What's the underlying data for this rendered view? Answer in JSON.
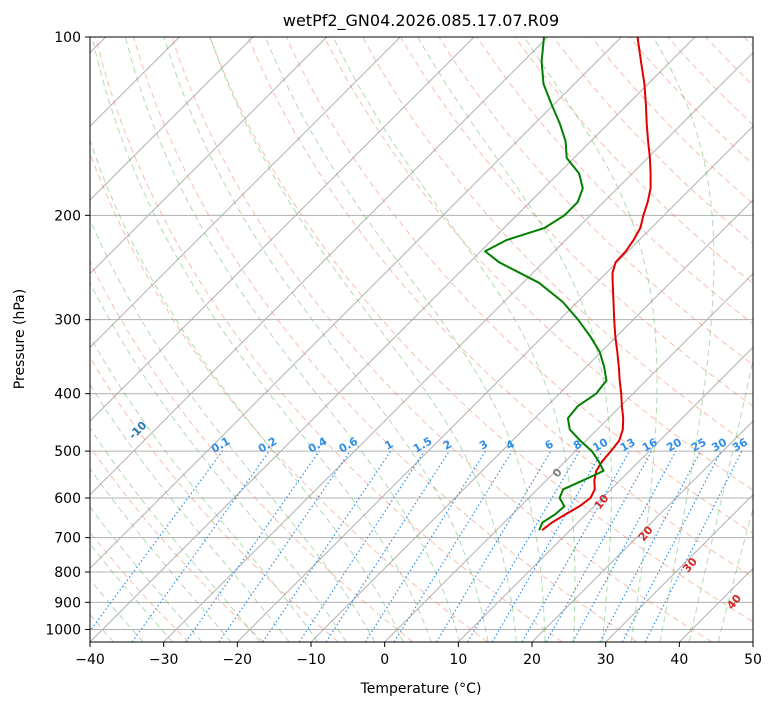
{
  "chart_data": {
    "type": "line",
    "title": "wetPf2_GN04.2026.085.17.07.R09",
    "xlabel": "Temperature (°C)",
    "ylabel": "Pressure (hPa)",
    "xlim": [
      -40,
      50
    ],
    "ylim": [
      1050,
      100
    ],
    "x_ticks": [
      -40,
      -30,
      -20,
      -10,
      0,
      10,
      20,
      30,
      40,
      50
    ],
    "y_ticks": [
      100,
      200,
      300,
      400,
      500,
      600,
      700,
      800,
      900,
      1000
    ],
    "series": [
      {
        "name": "temperature",
        "color": "#e00000",
        "points": [
          [
            680,
            6.2
          ],
          [
            660,
            6.5
          ],
          [
            640,
            7.2
          ],
          [
            620,
            8.0
          ],
          [
            600,
            8.4
          ],
          [
            580,
            7.8
          ],
          [
            560,
            6.5
          ],
          [
            540,
            5.5
          ],
          [
            520,
            5.0
          ],
          [
            500,
            4.8
          ],
          [
            480,
            4.5
          ],
          [
            460,
            3.5
          ],
          [
            440,
            2.0
          ],
          [
            420,
            0.2
          ],
          [
            400,
            -1.6
          ],
          [
            380,
            -3.6
          ],
          [
            360,
            -5.6
          ],
          [
            340,
            -7.8
          ],
          [
            320,
            -10.2
          ],
          [
            300,
            -12.6
          ],
          [
            280,
            -15.1
          ],
          [
            260,
            -17.8
          ],
          [
            250,
            -19.2
          ],
          [
            240,
            -20.2
          ],
          [
            230,
            -20.3
          ],
          [
            220,
            -20.8
          ],
          [
            210,
            -21.5
          ],
          [
            200,
            -22.8
          ],
          [
            190,
            -24.0
          ],
          [
            180,
            -25.5
          ],
          [
            170,
            -27.5
          ],
          [
            160,
            -29.7
          ],
          [
            150,
            -32.2
          ],
          [
            140,
            -34.8
          ],
          [
            130,
            -37.5
          ],
          [
            120,
            -40.5
          ],
          [
            110,
            -44.0
          ],
          [
            100,
            -47.8
          ]
        ]
      },
      {
        "name": "dewpoint",
        "color": "#008000",
        "points": [
          [
            680,
            5.8
          ],
          [
            660,
            5.2
          ],
          [
            640,
            5.8
          ],
          [
            620,
            6.0
          ],
          [
            600,
            4.2
          ],
          [
            580,
            3.5
          ],
          [
            560,
            5.0
          ],
          [
            540,
            6.5
          ],
          [
            520,
            4.5
          ],
          [
            500,
            2.2
          ],
          [
            480,
            -0.8
          ],
          [
            460,
            -3.7
          ],
          [
            440,
            -5.5
          ],
          [
            420,
            -5.8
          ],
          [
            400,
            -5.0
          ],
          [
            380,
            -5.4
          ],
          [
            360,
            -7.6
          ],
          [
            340,
            -10.2
          ],
          [
            320,
            -13.6
          ],
          [
            300,
            -17.5
          ],
          [
            280,
            -22.0
          ],
          [
            260,
            -27.8
          ],
          [
            250,
            -31.8
          ],
          [
            240,
            -36.0
          ],
          [
            230,
            -39.4
          ],
          [
            220,
            -38.0
          ],
          [
            210,
            -34.5
          ],
          [
            200,
            -33.5
          ],
          [
            190,
            -33.5
          ],
          [
            180,
            -34.7
          ],
          [
            170,
            -37.2
          ],
          [
            160,
            -41.0
          ],
          [
            150,
            -43.4
          ],
          [
            140,
            -46.6
          ],
          [
            130,
            -50.3
          ],
          [
            120,
            -54.2
          ],
          [
            110,
            -57.5
          ],
          [
            100,
            -60.5
          ]
        ]
      }
    ],
    "isohumes": {
      "color": "#2f8fe8",
      "values": [
        "0.1",
        "0.2",
        "0.4",
        "0.6",
        "1",
        "1.5",
        "2",
        "3",
        "4",
        "6",
        "8",
        "10",
        "13",
        "16",
        "20",
        "25",
        "30",
        "36"
      ]
    },
    "dry_adiabats": {
      "color": "#1f77b4",
      "values": [
        "-100",
        "-90",
        "-80",
        "-70",
        "-60",
        "-50",
        "-40",
        "-30",
        "-20",
        "-10"
      ]
    },
    "moist_adiabats": {
      "color": "#d62728",
      "values": [
        "0",
        "10",
        "20",
        "30",
        "40"
      ],
      "zero_color": "#808080"
    }
  }
}
